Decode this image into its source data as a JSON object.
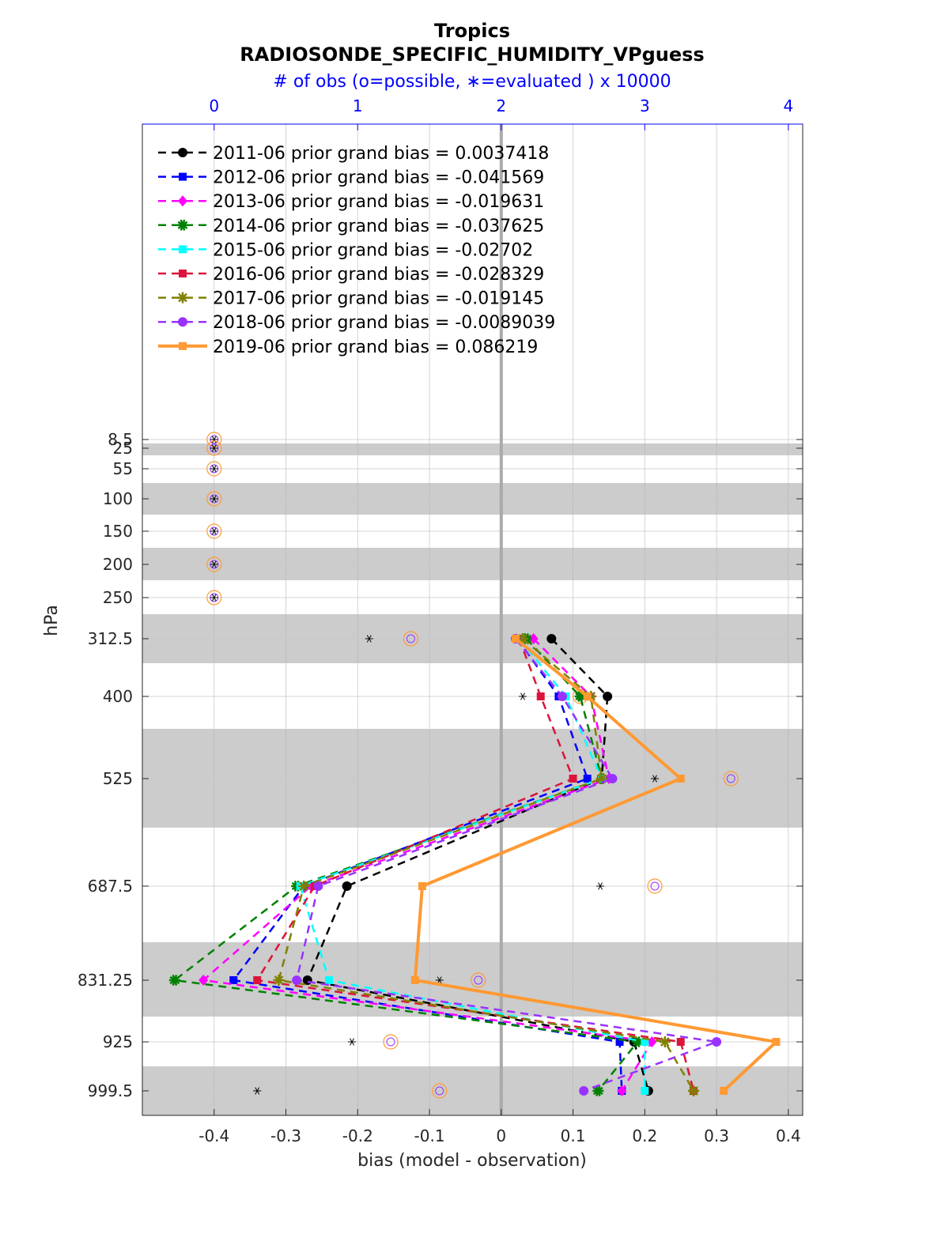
{
  "chart_data": {
    "type": "line",
    "title": "Tropics",
    "subtitle": "RADIOSONDE_SPECIFIC_HUMIDITY_VPguess",
    "top_axis_label": "# of obs (o=possible, ∗=evaluated ) x 10000",
    "xlabel": "bias (model - observation)",
    "ylabel": "hPa",
    "xlim": [
      -0.5,
      0.42
    ],
    "x_ticks": [
      "-0.4",
      "-0.3",
      "-0.2",
      "-0.1",
      "0",
      "0.1",
      "0.2",
      "0.3",
      "0.4"
    ],
    "x_tick_values": [
      -0.4,
      -0.3,
      -0.2,
      -0.1,
      0,
      0.1,
      0.2,
      0.3,
      0.4
    ],
    "top_ticks": [
      "0",
      "1",
      "2",
      "3",
      "4"
    ],
    "top_tick_values": [
      0,
      1,
      2,
      3,
      4
    ],
    "levels": [
      8.5,
      25,
      55,
      100,
      150,
      200,
      250,
      312.5,
      400,
      525,
      687.5,
      831.25,
      925,
      999.5
    ],
    "level_labels": [
      "8.5",
      "25",
      "55",
      "100",
      "150",
      "200",
      "250",
      "312.5",
      "400",
      "525",
      "687.5",
      "831.25",
      "925",
      "999.5"
    ],
    "grid": true,
    "legend_position": "top-left",
    "series": [
      {
        "name": "2011-06 prior grand bias = 0.0037418",
        "color": "#000000",
        "style": "dashed",
        "marker": "circle",
        "levels": [
          312.5,
          400,
          525,
          687.5,
          831.25,
          925,
          999.5
        ],
        "values": [
          0.07,
          0.148,
          0.14,
          -0.215,
          -0.27,
          0.185,
          0.205
        ]
      },
      {
        "name": "2012-06 prior grand bias = -0.041569",
        "color": "#0000ff",
        "style": "dashed",
        "marker": "square",
        "levels": [
          312.5,
          400,
          525,
          687.5,
          831.25,
          925,
          999.5
        ],
        "values": [
          0.022,
          0.08,
          0.12,
          -0.275,
          -0.373,
          0.165,
          0.168
        ]
      },
      {
        "name": "2013-06 prior grand bias = -0.019631",
        "color": "#ff00ff",
        "style": "dashed",
        "marker": "diamond",
        "levels": [
          312.5,
          400,
          525,
          687.5,
          831.25,
          925,
          999.5
        ],
        "values": [
          0.045,
          0.125,
          0.15,
          -0.265,
          -0.415,
          0.21,
          0.168
        ]
      },
      {
        "name": "2014-06 prior grand bias = -0.037625",
        "color": "#008000",
        "style": "dashed",
        "marker": "star",
        "levels": [
          312.5,
          400,
          525,
          687.5,
          831.25,
          925,
          999.5
        ],
        "values": [
          0.035,
          0.11,
          0.14,
          -0.285,
          -0.455,
          0.19,
          0.135
        ]
      },
      {
        "name": "2015-06 prior grand bias = -0.02702",
        "color": "#00ffff",
        "style": "dashed",
        "marker": "square",
        "levels": [
          312.5,
          400,
          525,
          687.5,
          831.25,
          925,
          999.5
        ],
        "values": [
          0.025,
          0.09,
          0.14,
          -0.28,
          -0.24,
          0.2,
          0.2
        ]
      },
      {
        "name": "2016-06 prior grand bias = -0.028329",
        "color": "#dc143c",
        "style": "dashed",
        "marker": "square",
        "levels": [
          312.5,
          400,
          525,
          687.5,
          831.25,
          925,
          999.5
        ],
        "values": [
          0.025,
          0.055,
          0.1,
          -0.26,
          -0.34,
          0.25,
          0.268
        ]
      },
      {
        "name": "2017-06 prior grand bias = -0.019145",
        "color": "#808000",
        "style": "dashed",
        "marker": "asterisk",
        "levels": [
          312.5,
          400,
          525,
          687.5,
          831.25,
          925,
          999.5
        ],
        "values": [
          0.03,
          0.125,
          0.14,
          -0.275,
          -0.31,
          0.228,
          0.268
        ]
      },
      {
        "name": "2018-06 prior grand bias = -0.0089039",
        "color": "#9932ff",
        "style": "dashed",
        "marker": "circle",
        "levels": [
          312.5,
          400,
          525,
          687.5,
          831.25,
          925,
          999.5
        ],
        "values": [
          0.02,
          0.085,
          0.155,
          -0.255,
          -0.285,
          0.3,
          0.115
        ]
      },
      {
        "name": "2019-06 prior grand bias = 0.086219",
        "color": "#ff9933",
        "style": "solid",
        "marker": "square",
        "levels": [
          312.5,
          400,
          525,
          687.5,
          831.25,
          925,
          999.5
        ],
        "values": [
          0.02,
          0.12,
          0.25,
          -0.11,
          -0.12,
          0.383,
          0.31
        ]
      }
    ],
    "obs_counts": {
      "note": "# of obs x 10000 on top axis",
      "levels": [
        8.5,
        25,
        55,
        100,
        150,
        200,
        250,
        312.5,
        400,
        525,
        687.5,
        831.25,
        925,
        999.5
      ],
      "possible": [
        0,
        0,
        0,
        0,
        0,
        0,
        0,
        1.37,
        2.55,
        3.6,
        3.07,
        1.84,
        1.23,
        1.57
      ],
      "evaluated": [
        0,
        0,
        0,
        0,
        0,
        0,
        0,
        1.08,
        2.15,
        3.07,
        2.69,
        1.57,
        0.96,
        0.3
      ]
    }
  }
}
